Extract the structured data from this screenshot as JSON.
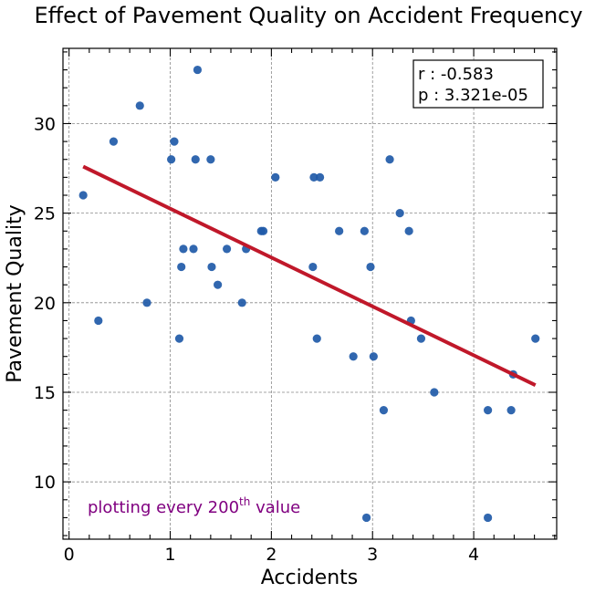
{
  "chart_data": {
    "type": "scatter",
    "title": "Effect of Pavement Quality on Accident Frequency",
    "xlabel": "Accidents",
    "ylabel": "Pavement Quality",
    "xlim": [
      -0.06,
      4.82
    ],
    "ylim": [
      6.8,
      34.2
    ],
    "xticks": [
      0,
      1,
      2,
      3,
      4
    ],
    "yticks": [
      10,
      15,
      20,
      25,
      30
    ],
    "grid": true,
    "points": [
      [
        0.14,
        26
      ],
      [
        0.29,
        19
      ],
      [
        0.44,
        29
      ],
      [
        0.7,
        31
      ],
      [
        0.77,
        20
      ],
      [
        1.01,
        28
      ],
      [
        1.04,
        29
      ],
      [
        1.09,
        18
      ],
      [
        1.11,
        22
      ],
      [
        1.13,
        23
      ],
      [
        1.23,
        23
      ],
      [
        1.25,
        28
      ],
      [
        1.27,
        33
      ],
      [
        1.4,
        28
      ],
      [
        1.41,
        22
      ],
      [
        1.47,
        21
      ],
      [
        1.56,
        23
      ],
      [
        1.71,
        20
      ],
      [
        1.75,
        23
      ],
      [
        1.9,
        24
      ],
      [
        1.92,
        24
      ],
      [
        2.04,
        27
      ],
      [
        2.41,
        22
      ],
      [
        2.42,
        27
      ],
      [
        2.45,
        18
      ],
      [
        2.48,
        27
      ],
      [
        2.67,
        24
      ],
      [
        2.81,
        17
      ],
      [
        2.92,
        24
      ],
      [
        2.94,
        8
      ],
      [
        2.98,
        22
      ],
      [
        3.01,
        17
      ],
      [
        3.11,
        14
      ],
      [
        3.17,
        28
      ],
      [
        3.27,
        25
      ],
      [
        3.36,
        24
      ],
      [
        3.38,
        19
      ],
      [
        3.48,
        18
      ],
      [
        3.61,
        15
      ],
      [
        4.14,
        14
      ],
      [
        4.14,
        8
      ],
      [
        4.37,
        14
      ],
      [
        4.39,
        16
      ],
      [
        4.61,
        18
      ]
    ],
    "fit_line": {
      "x": [
        0.14,
        4.61
      ],
      "y": [
        27.6,
        15.4
      ]
    },
    "point_color": "#1f5aa8",
    "line_color": "#c0182a",
    "stats": {
      "r": "r : -0.583",
      "p": "p : 3.321e-05"
    },
    "note": {
      "prefix": "plotting every 200",
      "sup": "th",
      "suffix": " value"
    }
  }
}
